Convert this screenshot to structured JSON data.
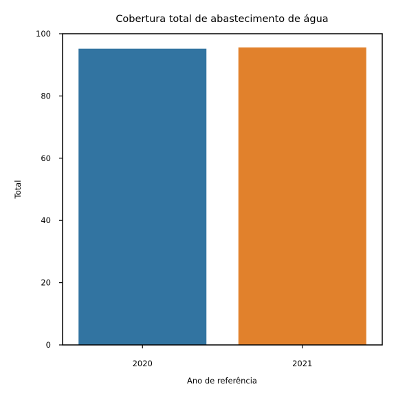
{
  "chart_data": {
    "type": "bar",
    "title": "Cobertura total de abastecimento de água",
    "xlabel": "Ano de referência",
    "ylabel": "Total",
    "categories": [
      "2020",
      "2021"
    ],
    "values": [
      95.2,
      95.6
    ],
    "colors": [
      "#3274a1",
      "#e1812c"
    ],
    "ylim": [
      0,
      100
    ],
    "yticks": [
      0,
      20,
      40,
      60,
      80,
      100
    ],
    "grid": false,
    "legend": "none"
  }
}
